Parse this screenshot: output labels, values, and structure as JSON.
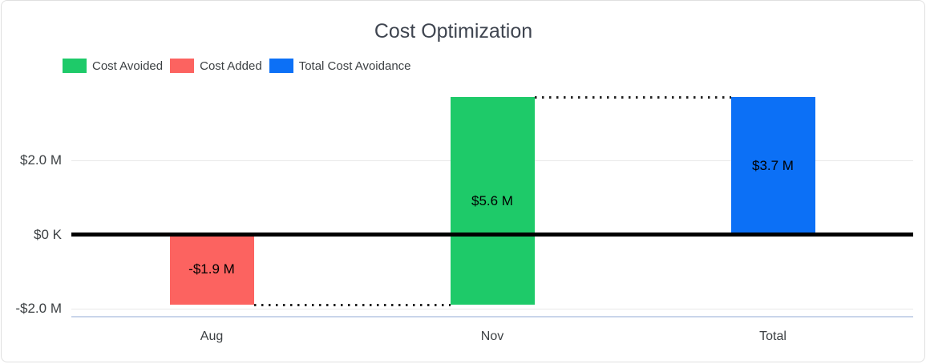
{
  "chart_data": {
    "type": "bar",
    "subtype": "waterfall",
    "title": "Cost Optimization",
    "categories": [
      "Aug",
      "Nov",
      "Total"
    ],
    "bars": [
      {
        "category": "Aug",
        "series": "Cost Added",
        "start": 0,
        "end": -1.9,
        "label": "-$1.9 M",
        "color": "#fc6360"
      },
      {
        "category": "Nov",
        "series": "Cost Avoided",
        "start": -1.9,
        "end": 3.7,
        "label": "$5.6 M",
        "color": "#1eca69"
      },
      {
        "category": "Total",
        "series": "Total Cost Avoidance",
        "start": 0,
        "end": 3.7,
        "label": "$3.7 M",
        "color": "#0c70f6"
      }
    ],
    "y_ticks": [
      {
        "value": 2.0,
        "label": "$2.0 M"
      },
      {
        "value": 0,
        "label": "$0 K"
      },
      {
        "value": -2.0,
        "label": "-$2.0 M"
      }
    ],
    "gridline_values": [
      2.0,
      -2.0
    ],
    "connectors": [
      {
        "value": -1.9,
        "from": 0,
        "to": 1
      },
      {
        "value": 3.7,
        "from": 1,
        "to": 2
      }
    ],
    "legend": [
      {
        "label": "Cost Avoided",
        "color": "#1eca69"
      },
      {
        "label": "Cost Added",
        "color": "#fc6360"
      },
      {
        "label": "Total Cost Avoidance",
        "color": "#0c70f6"
      }
    ],
    "zero_line_color": "#000000",
    "ylim": [
      -2.2,
      3.75
    ],
    "grid": true,
    "legend_position": "top-left"
  }
}
